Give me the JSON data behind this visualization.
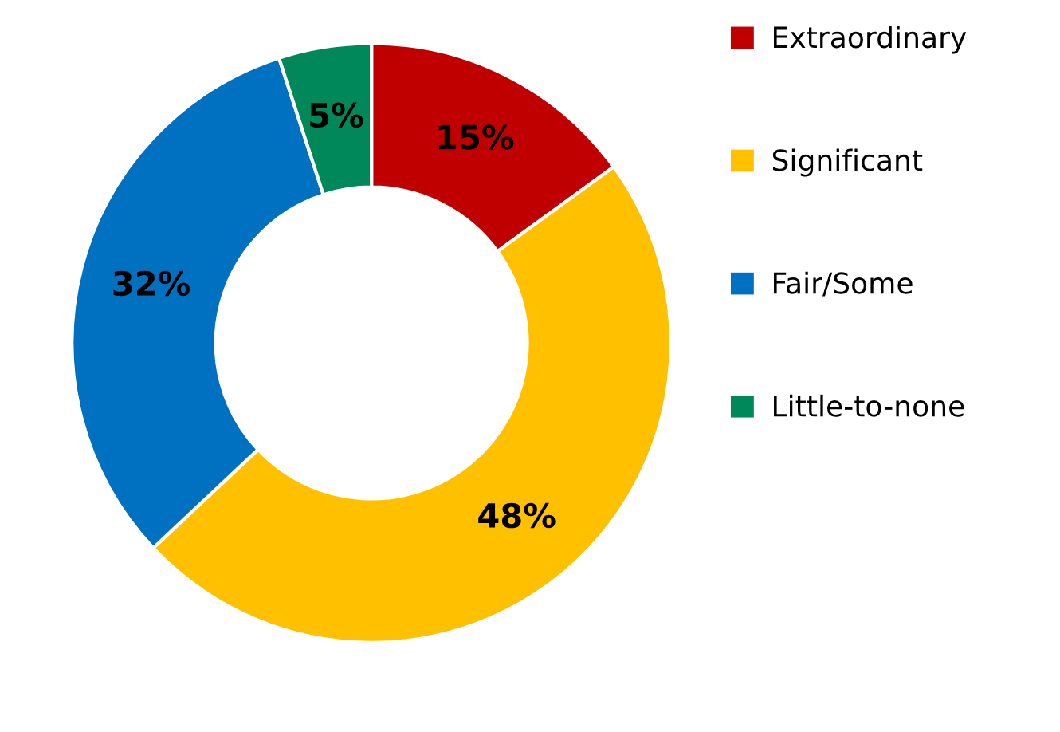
{
  "chart_data": {
    "type": "donut",
    "categories": [
      "Extraordinary",
      "Significant",
      "Fair/Some",
      "Little-to-none"
    ],
    "values": [
      15,
      48,
      32,
      5
    ],
    "value_labels": [
      "15%",
      "48%",
      "32%",
      "5%"
    ],
    "colors": [
      "#c00000",
      "#ffc000",
      "#0070c0",
      "#00875a"
    ],
    "legend": "top right"
  }
}
